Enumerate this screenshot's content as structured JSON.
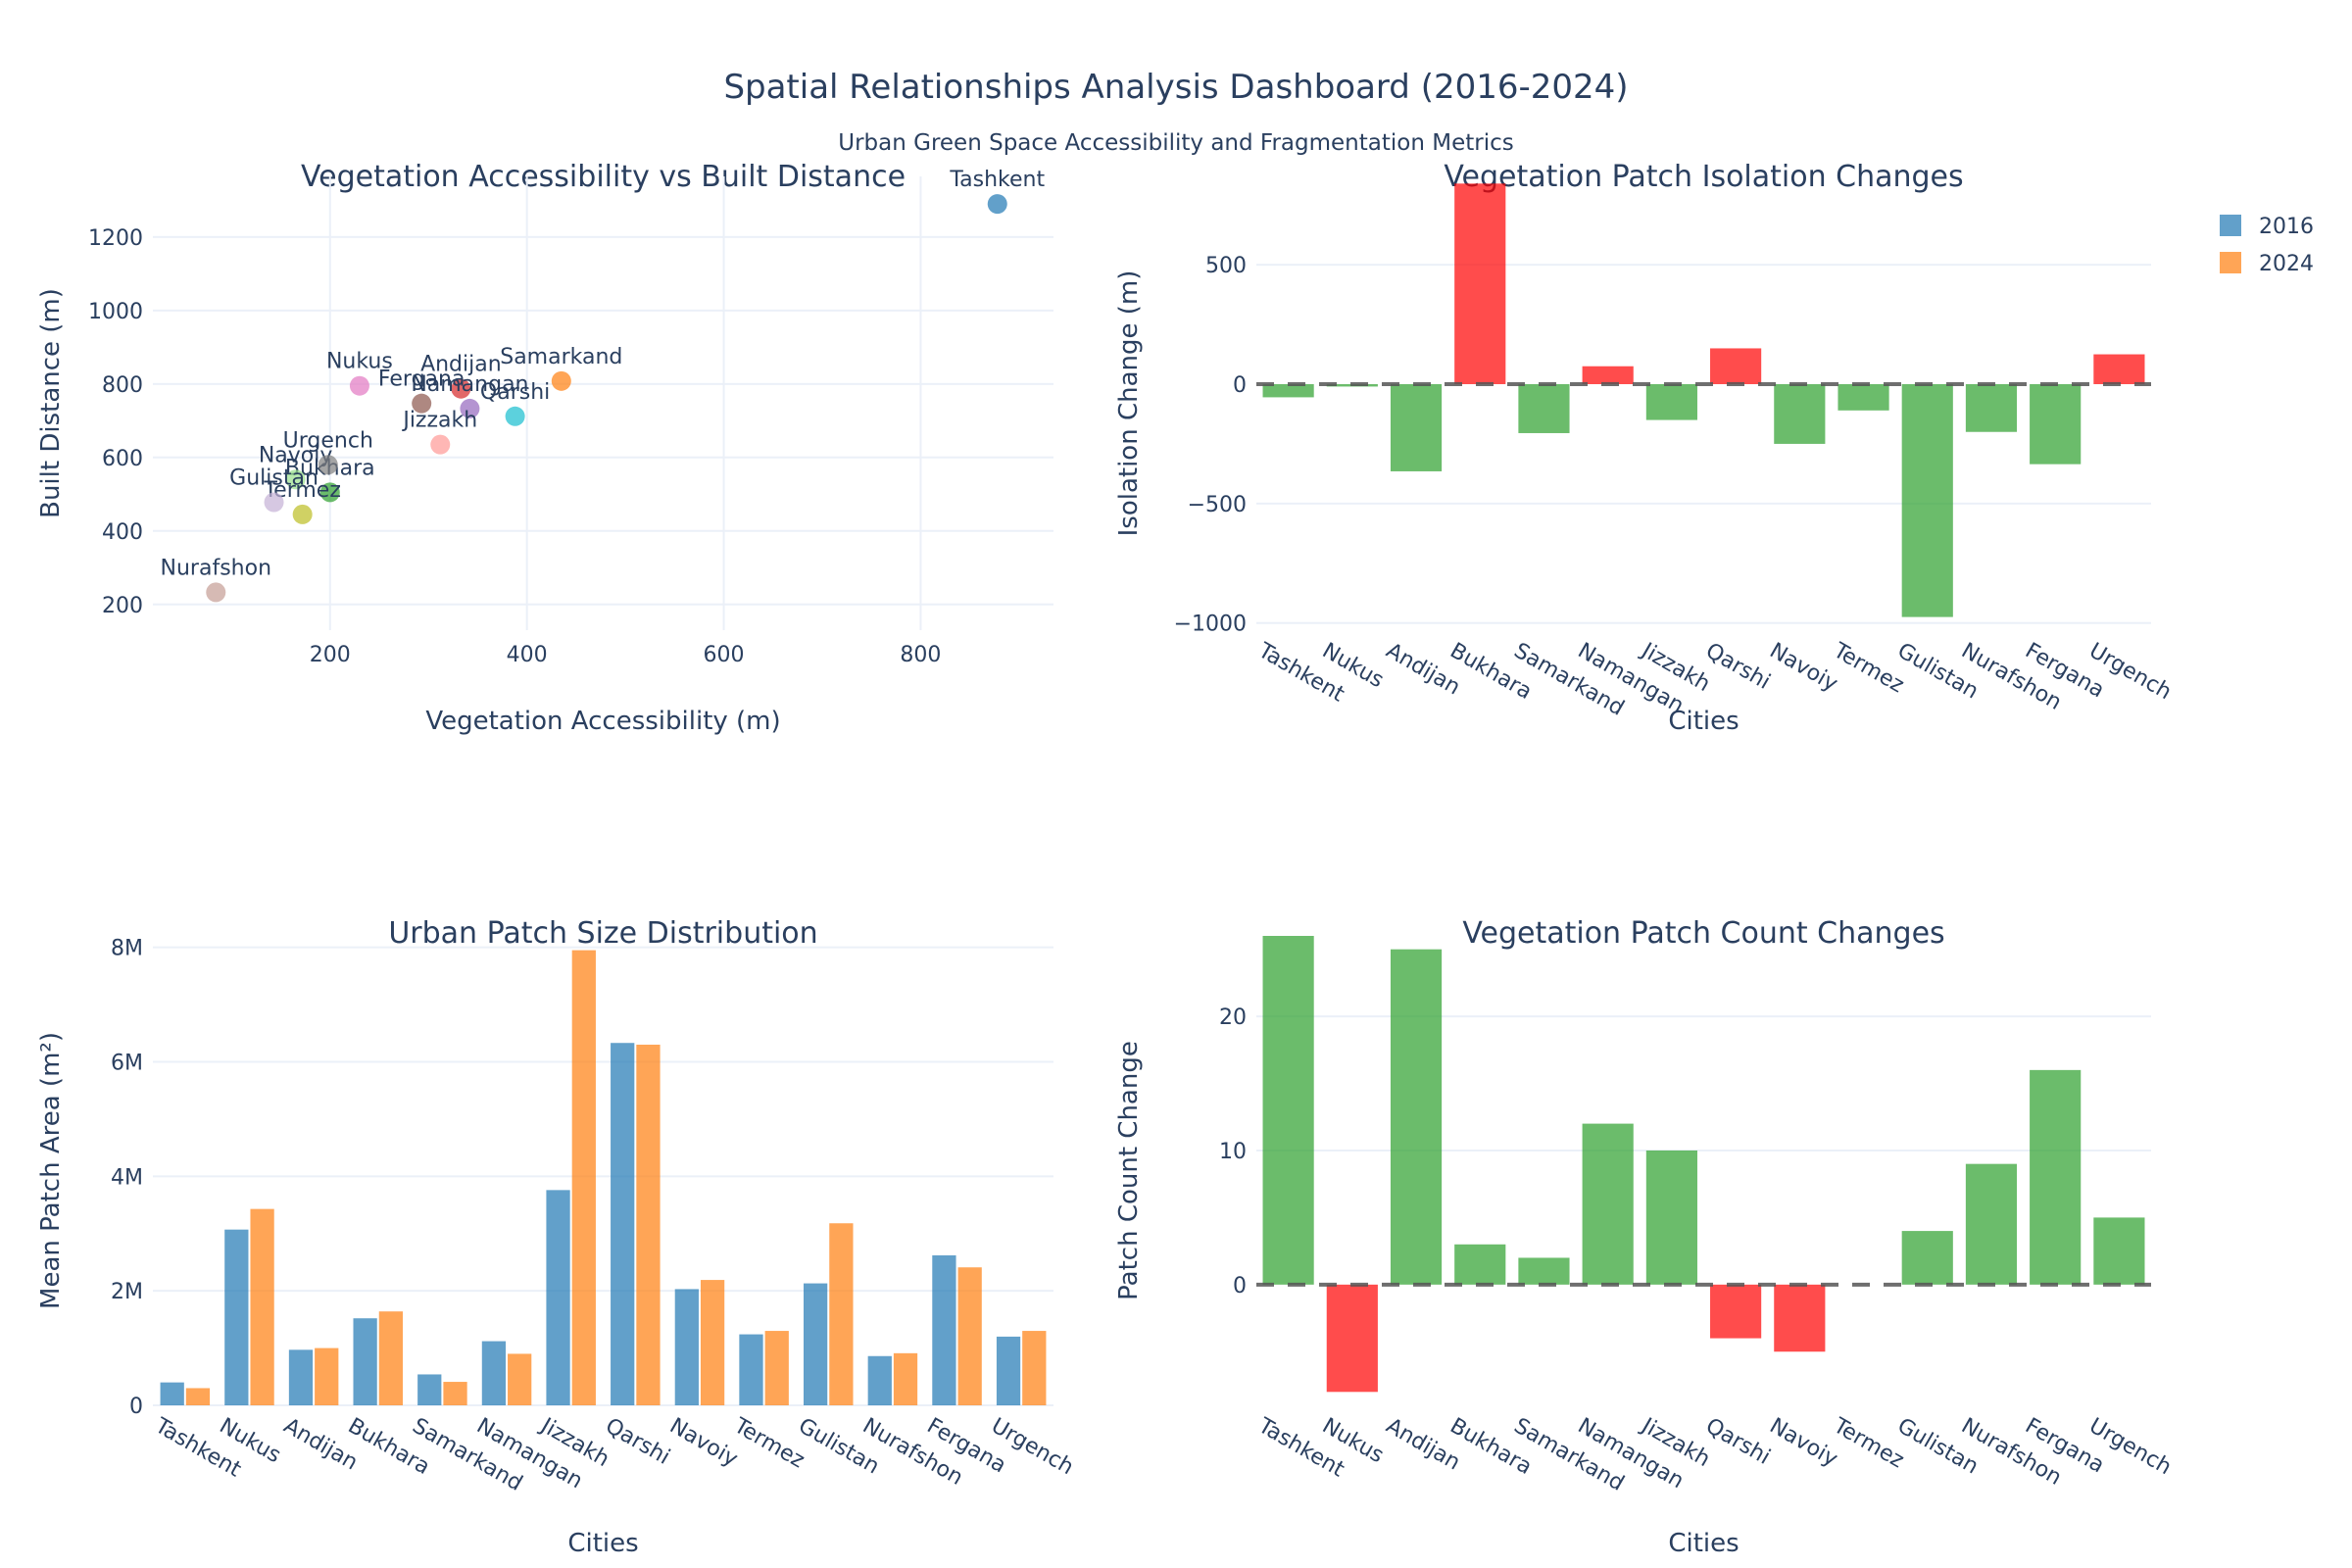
{
  "title": "Spatial Relationships Analysis Dashboard (2016-2024)",
  "subtitle": "Urban Green Space Accessibility and Fragmentation Metrics",
  "legend": [
    {
      "label": "2016",
      "color": "#1f77b4"
    },
    {
      "label": "2024",
      "color": "#ff7f0e"
    }
  ],
  "colors": {
    "positive": "#2ca02c",
    "negative": "#ff0000",
    "grid": "#ebf0f8",
    "zero_line": "#555555"
  },
  "chart_data": [
    {
      "type": "scatter",
      "title": "Vegetation Accessibility vs Built Distance",
      "xlabel": "Vegetation Accessibility (m)",
      "ylabel": "Built Distance (m)",
      "xlim": [
        20,
        935
      ],
      "ylim": [
        130,
        1365
      ],
      "xticks": [
        200,
        400,
        600,
        800
      ],
      "yticks": [
        200,
        400,
        600,
        800,
        1000,
        1200
      ],
      "grid": true,
      "points": [
        {
          "label": "Tashkent",
          "x": 878,
          "y": 1290,
          "color": "#1f77b4"
        },
        {
          "label": "Nukus",
          "x": 230,
          "y": 795,
          "color": "#e377c2"
        },
        {
          "label": "Andijan",
          "x": 333,
          "y": 787,
          "color": "#d62728"
        },
        {
          "label": "Bukhara",
          "x": 200,
          "y": 505,
          "color": "#2ca02c"
        },
        {
          "label": "Samarkand",
          "x": 435,
          "y": 808,
          "color": "#ff7f0e"
        },
        {
          "label": "Namangan",
          "x": 342,
          "y": 733,
          "color": "#9467bd"
        },
        {
          "label": "Jizzakh",
          "x": 312,
          "y": 635,
          "color": "#ff9896"
        },
        {
          "label": "Qarshi",
          "x": 388,
          "y": 712,
          "color": "#17becf"
        },
        {
          "label": "Navoiy",
          "x": 165,
          "y": 540,
          "color": "#98df8a"
        },
        {
          "label": "Termez",
          "x": 172,
          "y": 445,
          "color": "#bcbd22"
        },
        {
          "label": "Gulistan",
          "x": 143,
          "y": 478,
          "color": "#c5b0d5"
        },
        {
          "label": "Nurafshon",
          "x": 84,
          "y": 233,
          "color": "#c49c94"
        },
        {
          "label": "Fergana",
          "x": 293,
          "y": 747,
          "color": "#8c564b"
        },
        {
          "label": "Urgench",
          "x": 198,
          "y": 580,
          "color": "#7f7f7f"
        }
      ]
    },
    {
      "type": "bar",
      "title": "Vegetation Patch Isolation Changes",
      "xlabel": "Cities",
      "ylabel": "Isolation Change (m)",
      "ylim": [
        -1030,
        870
      ],
      "yticks": [
        -1000,
        -500,
        0,
        500
      ],
      "ytick_labels": [
        "−1000",
        "−500",
        "0",
        "500"
      ],
      "categories": [
        "Tashkent",
        "Nukus",
        "Andijan",
        "Bukhara",
        "Samarkand",
        "Namangan",
        "Jizzakh",
        "Qarshi",
        "Navoiy",
        "Termez",
        "Gulistan",
        "Nurafshon",
        "Fergana",
        "Urgench"
      ],
      "values": [
        -55,
        -10,
        -365,
        840,
        -205,
        75,
        -150,
        150,
        -250,
        -110,
        -975,
        -200,
        -335,
        125
      ]
    },
    {
      "type": "bar",
      "title": "Urban Patch Size Distribution",
      "xlabel": "Cities",
      "ylabel": "Mean Patch Area (m²)",
      "ylim": [
        0,
        8200000
      ],
      "yticks": [
        0,
        2000000,
        4000000,
        6000000,
        8000000
      ],
      "ytick_labels": [
        "0",
        "2M",
        "4M",
        "6M",
        "8M"
      ],
      "categories": [
        "Tashkent",
        "Nukus",
        "Andijan",
        "Bukhara",
        "Samarkand",
        "Namangan",
        "Jizzakh",
        "Qarshi",
        "Navoiy",
        "Termez",
        "Gulistan",
        "Nurafshon",
        "Fergana",
        "Urgench"
      ],
      "series": [
        {
          "name": "2016",
          "values": [
            400000,
            3070000,
            970000,
            1520000,
            540000,
            1120000,
            3760000,
            6330000,
            2030000,
            1240000,
            2130000,
            860000,
            2620000,
            1200000
          ]
        },
        {
          "name": "2024",
          "values": [
            300000,
            3430000,
            1000000,
            1640000,
            410000,
            900000,
            7950000,
            6300000,
            2190000,
            1300000,
            3180000,
            910000,
            2410000,
            1300000
          ]
        }
      ]
    },
    {
      "type": "bar",
      "title": "Vegetation Patch Count Changes",
      "xlabel": "Cities",
      "ylabel": "Patch Count Change",
      "ylim": [
        -9,
        26
      ],
      "yticks": [
        0,
        10,
        20
      ],
      "ytick_labels": [
        "0",
        "10",
        "20"
      ],
      "categories": [
        "Tashkent",
        "Nukus",
        "Andijan",
        "Bukhara",
        "Samarkand",
        "Namangan",
        "Jizzakh",
        "Qarshi",
        "Navoiy",
        "Termez",
        "Gulistan",
        "Nurafshon",
        "Fergana",
        "Urgench"
      ],
      "values": [
        26,
        -8,
        25,
        3,
        2,
        12,
        10,
        -4,
        -5,
        0,
        4,
        9,
        16,
        5
      ]
    }
  ]
}
